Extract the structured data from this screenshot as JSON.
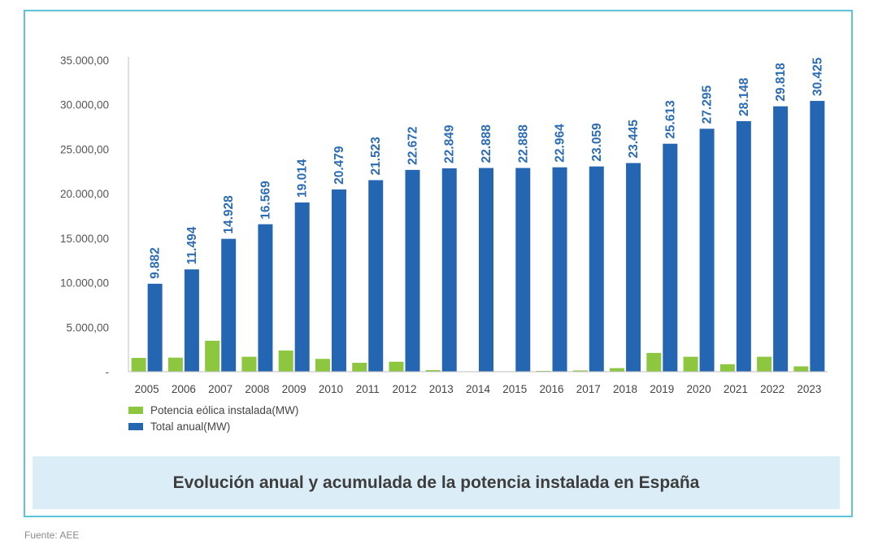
{
  "chart_data": {
    "type": "bar",
    "categories": [
      "2005",
      "2006",
      "2007",
      "2008",
      "2009",
      "2010",
      "2011",
      "2012",
      "2013",
      "2014",
      "2015",
      "2016",
      "2017",
      "2018",
      "2019",
      "2020",
      "2021",
      "2022",
      "2023"
    ],
    "series": [
      {
        "name": "Potencia eólica instalada(MW)",
        "color": "#8dc63f",
        "values": [
          1550,
          1580,
          3480,
          1680,
          2380,
          1440,
          1000,
          1120,
          175,
          30,
          0,
          95,
          140,
          400,
          2110,
          1680,
          840,
          1680,
          600
        ]
      },
      {
        "name": "Total anual(MW)",
        "color": "#2466b1",
        "values": [
          9882,
          11494,
          14928,
          16569,
          19014,
          20479,
          21523,
          22672,
          22849,
          22888,
          22888,
          22964,
          23059,
          23445,
          25613,
          27295,
          28148,
          29818,
          30425
        ],
        "labels": [
          "9.882",
          "11.494",
          "14.928",
          "16.569",
          "19.014",
          "20.479",
          "21.523",
          "22.672",
          "22.849",
          "22.888",
          "22.888",
          "22.964",
          "23.059",
          "23.445",
          "25.613",
          "27.295",
          "28.148",
          "29.818",
          "30.425"
        ]
      }
    ],
    "yticks": [
      0,
      5000,
      10000,
      15000,
      20000,
      25000,
      30000,
      35000
    ],
    "ytick_labels": [
      "-",
      "5.000,00",
      "10.000,00",
      "15.000,00",
      "20.000,00",
      "25.000,00",
      "30.000,00",
      "35.000,00"
    ],
    "ylim": [
      0,
      35000
    ],
    "grid": false,
    "legend_position": "bottom-left",
    "title": "Evolución anual y acumulada de la potencia instalada en España"
  },
  "caption": "Evolución anual y acumulada de la potencia instalada en España",
  "source": "Fuente: AEE"
}
